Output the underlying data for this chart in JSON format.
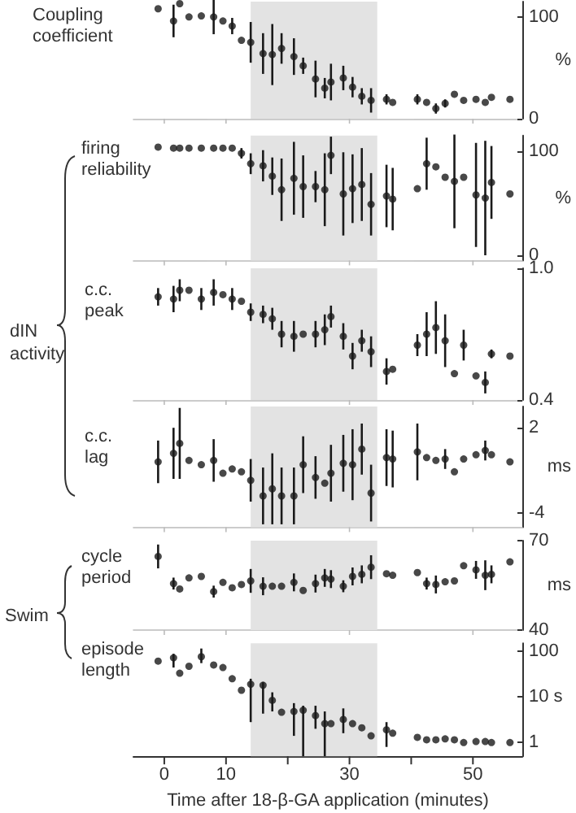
{
  "chart_data": [
    {
      "type": "scatter",
      "title": "Coupling coefficient",
      "ylabel": "%",
      "x": [
        -1,
        1.5,
        2.5,
        4,
        6,
        8,
        9.5,
        11,
        12.5,
        14,
        16,
        17.5,
        19,
        21,
        22.5,
        24.5,
        26,
        27,
        29,
        30.5,
        32,
        33.5,
        36,
        37,
        41,
        42.5,
        44,
        45.5,
        47,
        48.5,
        50.5,
        52,
        53,
        56
      ],
      "values": [
        108,
        96,
        113,
        100,
        101,
        100,
        96,
        91,
        77,
        75,
        64,
        63,
        69,
        61,
        52,
        39,
        30,
        36,
        40,
        31,
        22,
        18,
        19,
        16,
        19,
        16,
        10,
        15,
        24,
        18,
        19,
        16,
        21,
        19
      ],
      "errors": [
        null,
        16,
        null,
        null,
        null,
        17,
        null,
        8,
        null,
        20,
        20,
        30,
        15,
        18,
        8,
        18,
        10,
        18,
        12,
        10,
        8,
        12,
        5,
        null,
        5,
        null,
        5,
        4,
        null,
        null,
        null,
        null,
        null,
        null
      ],
      "color": "#1a1a1a",
      "marker": "circle",
      "xlim": [
        -5,
        58
      ],
      "xticks": [
        0,
        10,
        30,
        50
      ],
      "ylim": [
        0,
        115
      ],
      "yticks": [
        0,
        100
      ],
      "tick_labels": "y",
      "bands": [
        {
          "axis": "x",
          "from": 14,
          "to": 34.5,
          "color": "#e3e3e3"
        }
      ]
    },
    {
      "type": "scatter",
      "title": "firing reliability",
      "ylabel": "%",
      "x": [
        -1,
        1.5,
        2.5,
        4,
        6,
        8,
        9.5,
        11,
        12.5,
        14,
        16,
        17.5,
        19,
        21,
        22.5,
        24.5,
        26,
        27,
        29,
        30.5,
        32,
        33.5,
        36,
        37,
        41,
        42.5,
        44,
        45.5,
        47,
        48.5,
        50.5,
        52,
        53,
        56
      ],
      "values": [
        104,
        103,
        103,
        103,
        103,
        103,
        103,
        103,
        98,
        88,
        86,
        76,
        63,
        74,
        66,
        66,
        63,
        96,
        59,
        64,
        68,
        49,
        57,
        54,
        64,
        88,
        85,
        75,
        71,
        75,
        58,
        55,
        70,
        59
      ],
      "errors": [
        null,
        null,
        null,
        null,
        null,
        null,
        null,
        null,
        5,
        10,
        15,
        18,
        30,
        35,
        30,
        15,
        35,
        18,
        40,
        33,
        35,
        30,
        30,
        30,
        null,
        25,
        null,
        null,
        45,
        null,
        50,
        55,
        35,
        null
      ],
      "color": "#1a1a1a",
      "marker": "circle",
      "xlim": [
        -5,
        58
      ],
      "xticks": [
        0,
        10,
        30,
        50
      ],
      "ylim": [
        -5,
        115
      ],
      "yticks": [
        0,
        100
      ],
      "tick_labels": "y",
      "bands": [
        {
          "axis": "x",
          "from": 14,
          "to": 34.5,
          "color": "#e3e3e3"
        }
      ]
    },
    {
      "type": "scatter",
      "title": "c.c. peak",
      "annotations": [
        "dIN activity"
      ],
      "x": [
        -1,
        1.5,
        2.5,
        4,
        6,
        8,
        9.5,
        11,
        12.5,
        14,
        16,
        17.5,
        19,
        21,
        22.5,
        24.5,
        26,
        27,
        29,
        30.5,
        32,
        33.5,
        36,
        37,
        41,
        42.5,
        44,
        45.5,
        47,
        48.5,
        50.5,
        52,
        53,
        56
      ],
      "values": [
        0.87,
        0.86,
        0.9,
        0.9,
        0.86,
        0.89,
        0.88,
        0.86,
        0.85,
        0.8,
        0.79,
        0.77,
        0.7,
        0.69,
        0.7,
        0.7,
        0.72,
        0.78,
        0.69,
        0.6,
        0.67,
        0.62,
        0.53,
        0.54,
        0.65,
        0.7,
        0.73,
        0.67,
        0.52,
        0.65,
        0.51,
        0.48,
        0.61,
        0.6
      ],
      "errors": [
        0.04,
        0.06,
        0.05,
        null,
        0.05,
        0.06,
        null,
        0.05,
        null,
        0.04,
        0.04,
        0.05,
        0.06,
        0.07,
        null,
        0.06,
        0.07,
        0.05,
        0.06,
        0.06,
        0.05,
        0.07,
        0.06,
        null,
        0.05,
        0.1,
        0.12,
        0.12,
        null,
        0.07,
        null,
        0.05,
        0.02,
        null
      ],
      "color": "#1a1a1a",
      "marker": "circle",
      "xlim": [
        -5,
        58
      ],
      "xticks": [
        0,
        10,
        30,
        50
      ],
      "ylim": [
        0.4,
        1.0
      ],
      "yticks": [
        {
          "value": 0.4,
          "label": "0.4"
        },
        {
          "value": 1.0,
          "label": "1.0"
        }
      ],
      "tick_labels": "y",
      "bands": [
        {
          "axis": "x",
          "from": 14,
          "to": 34.5,
          "color": "#e3e3e3"
        }
      ]
    },
    {
      "type": "scatter",
      "title": "c.c. lag",
      "ylabel": "ms",
      "x": [
        -1,
        1.5,
        2.5,
        4,
        6,
        8,
        9.5,
        11,
        12.5,
        14,
        16,
        17.5,
        19,
        21,
        22.5,
        24.5,
        26,
        27,
        29,
        30.5,
        32,
        33.5,
        36,
        37,
        41,
        42.5,
        44,
        45.5,
        47,
        48.5,
        50.5,
        52,
        53,
        56
      ],
      "values": [
        -0.4,
        0.2,
        0.9,
        -0.3,
        -0.6,
        -0.3,
        -1.2,
        -0.9,
        -1.1,
        -1.7,
        -2.8,
        -2.3,
        -2.8,
        -2.8,
        -0.6,
        -1.5,
        -1.9,
        -1.2,
        -0.5,
        -0.6,
        0.5,
        -2.6,
        -0.1,
        -0.2,
        0.3,
        -0.1,
        -0.3,
        -0.2,
        -1.1,
        -0.2,
        0.1,
        0.4,
        0.1,
        -0.4
      ],
      "errors": [
        1.5,
        1.8,
        2.5,
        null,
        null,
        1.5,
        null,
        null,
        null,
        1.5,
        2,
        2.5,
        2,
        2,
        2,
        1.5,
        null,
        2,
        2,
        2.5,
        1.8,
        2,
        2,
        2,
        2,
        null,
        null,
        0.7,
        null,
        null,
        null,
        0.7,
        null,
        null
      ],
      "color": "#1a1a1a",
      "marker": "circle",
      "xlim": [
        -5,
        58
      ],
      "xticks": [
        0,
        10,
        30,
        50
      ],
      "ylim": [
        -5,
        3.5
      ],
      "yticks": [
        -4,
        2
      ],
      "tick_labels": "y",
      "bands": [
        {
          "axis": "x",
          "from": 14,
          "to": 34.5,
          "color": "#e3e3e3"
        }
      ]
    },
    {
      "type": "scatter",
      "title": "cycle period",
      "ylabel": "ms",
      "annotations": [
        "Swim"
      ],
      "x": [
        -1,
        1.5,
        2.5,
        4,
        6,
        8,
        9.5,
        11,
        12.5,
        14,
        16,
        17.5,
        19,
        21,
        22.5,
        24.5,
        26,
        27,
        29,
        30.5,
        32,
        33.5,
        36,
        37,
        41,
        42.5,
        44,
        45.5,
        47,
        48.5,
        50.5,
        52,
        53,
        56
      ],
      "values": [
        64.7,
        55.6,
        53.8,
        57.5,
        58,
        52.9,
        56,
        54.2,
        55.3,
        56.5,
        54.7,
        54.7,
        54.7,
        56,
        53.3,
        55.6,
        57.5,
        57.1,
        54.7,
        58,
        58.7,
        61.1,
        58.9,
        58.4,
        59.3,
        55.6,
        55.3,
        56.2,
        56.5,
        61.6,
        60.2,
        58.4,
        58.7,
        62.9
      ],
      "errors": [
        4,
        2,
        null,
        null,
        null,
        2,
        null,
        null,
        null,
        4,
        3,
        null,
        null,
        3,
        null,
        3,
        3,
        3,
        2,
        3,
        3,
        4,
        null,
        null,
        null,
        2,
        3,
        null,
        null,
        null,
        3,
        5,
        3,
        null
      ],
      "color": "#1a1a1a",
      "marker": "circle",
      "xlim": [
        -5,
        58
      ],
      "xticks": [
        0,
        10,
        30,
        50
      ],
      "ylim": [
        40,
        70
      ],
      "yticks": [
        40,
        70
      ],
      "tick_labels": "y",
      "bands": [
        {
          "axis": "x",
          "from": 14,
          "to": 34.5,
          "color": "#e3e3e3"
        }
      ]
    },
    {
      "type": "scatter",
      "title": "episode length",
      "xlabel": "Time after 18-β-GA application (minutes)",
      "log": "y",
      "x": [
        -1,
        1.5,
        2.5,
        4,
        6,
        8,
        9.5,
        11,
        12.5,
        14,
        16,
        17.5,
        19,
        21,
        22.5,
        24.5,
        26,
        27,
        29,
        30.5,
        32,
        33.5,
        36,
        37,
        41,
        42.5,
        44,
        45.5,
        47,
        48.5,
        50.5,
        52,
        53,
        56
      ],
      "values": [
        61,
        72,
        33,
        47,
        76,
        50,
        44,
        25,
        14,
        19,
        18,
        8.4,
        4.6,
        4.8,
        5.1,
        3.9,
        2.6,
        2.6,
        3.2,
        2.6,
        2.1,
        1.4,
        1.9,
        1.6,
        1.3,
        1.15,
        1.15,
        1.2,
        1.15,
        1,
        1.05,
        1.05,
        1,
        1
      ],
      "errors": [
        null,
        [
          44,
          88
        ],
        null,
        null,
        [
          55,
          115
        ],
        null,
        null,
        null,
        null,
        [
          2.8,
          25
        ],
        [
          4.3,
          21
        ],
        [
          4.8,
          12.6
        ],
        null,
        [
          1.4,
          7.3
        ],
        [
          0.5,
          6.4
        ],
        [
          2,
          6.4
        ],
        [
          0.5,
          4.8
        ],
        null,
        [
          1.6,
          5.6
        ],
        null,
        null,
        null,
        [
          0.8,
          2.8
        ],
        null,
        null,
        null,
        null,
        null,
        null,
        null,
        null,
        null,
        null,
        null
      ],
      "color": "#1a1a1a",
      "marker": "circle",
      "xlim": [
        -5,
        58
      ],
      "xticks": [
        0,
        10,
        {
          "value": 20,
          "label": null
        },
        30,
        {
          "value": 40,
          "label": null
        },
        50
      ],
      "ylim": [
        0.5,
        150
      ],
      "yticks": [
        1,
        {
          "value": 10,
          "label": "10 s"
        },
        100
      ],
      "bands": [
        {
          "axis": "x",
          "from": 14,
          "to": 34.5,
          "color": "#e3e3e3"
        }
      ]
    }
  ]
}
